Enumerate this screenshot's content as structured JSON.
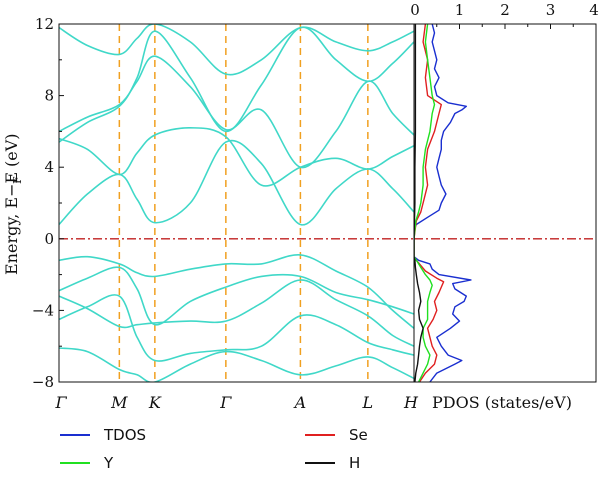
{
  "chart_data": [
    {
      "type": "line",
      "title": "",
      "ylabel": "Energy, E−E",
      "ylabel_sub": "F",
      "ylabel_unit": "(eV)",
      "ylim": [
        -8,
        12
      ],
      "yticks": [
        12,
        8,
        4,
        0,
        -4,
        -8
      ],
      "ytick_labels": [
        "12",
        "8",
        "4",
        "0",
        "−4",
        "−8"
      ],
      "kpoints": [
        {
          "label": "Γ",
          "x": 0
        },
        {
          "label": "M",
          "x": 0.17
        },
        {
          "label": "K",
          "x": 0.27
        },
        {
          "label": "Γ",
          "x": 0.47
        },
        {
          "label": "A",
          "x": 0.68
        },
        {
          "label": "L",
          "x": 0.87
        },
        {
          "label": "H",
          "x": 1.0
        }
      ],
      "fermi_level": 0,
      "band_color": "#40d8c8",
      "highsym_line_color": "#f0a020",
      "fermi_line_color": "#c02020",
      "series": [
        {
          "values": [
            [
              0,
              0.8
            ],
            [
              0.08,
              2.5
            ],
            [
              0.17,
              3.6
            ],
            [
              0.22,
              2.2
            ],
            [
              0.27,
              0.9
            ],
            [
              0.37,
              2.0
            ],
            [
              0.47,
              5.4
            ],
            [
              0.57,
              4.2
            ],
            [
              0.68,
              0.8
            ],
            [
              0.78,
              2.8
            ],
            [
              0.87,
              3.9
            ],
            [
              0.94,
              2.8
            ],
            [
              1.0,
              1.5
            ]
          ]
        },
        {
          "values": [
            [
              0,
              5.6
            ],
            [
              0.08,
              5.0
            ],
            [
              0.17,
              3.6
            ],
            [
              0.22,
              4.8
            ],
            [
              0.27,
              5.8
            ],
            [
              0.37,
              6.2
            ],
            [
              0.47,
              5.7
            ],
            [
              0.57,
              3.0
            ],
            [
              0.68,
              4.0
            ],
            [
              0.78,
              4.5
            ],
            [
              0.87,
              3.9
            ],
            [
              0.94,
              4.6
            ],
            [
              1.0,
              5.2
            ]
          ]
        },
        {
          "values": [
            [
              0,
              6.0
            ],
            [
              0.08,
              6.8
            ],
            [
              0.17,
              7.5
            ],
            [
              0.22,
              8.8
            ],
            [
              0.27,
              10.2
            ],
            [
              0.37,
              8.5
            ],
            [
              0.47,
              6.1
            ],
            [
              0.57,
              7.2
            ],
            [
              0.68,
              4.0
            ],
            [
              0.78,
              6.0
            ],
            [
              0.87,
              8.8
            ],
            [
              0.94,
              7.0
            ],
            [
              1.0,
              5.8
            ]
          ]
        },
        {
          "values": [
            [
              0,
              5.4
            ],
            [
              0.08,
              6.5
            ],
            [
              0.17,
              7.4
            ],
            [
              0.22,
              9.0
            ],
            [
              0.27,
              11.6
            ],
            [
              0.37,
              9.0
            ],
            [
              0.47,
              6.0
            ],
            [
              0.57,
              8.6
            ],
            [
              0.68,
              11.8
            ],
            [
              0.78,
              10.0
            ],
            [
              0.87,
              8.8
            ],
            [
              0.94,
              9.8
            ],
            [
              1.0,
              11.0
            ]
          ]
        },
        {
          "values": [
            [
              0,
              11.8
            ],
            [
              0.08,
              10.8
            ],
            [
              0.17,
              10.3
            ],
            [
              0.22,
              11.2
            ],
            [
              0.27,
              12.0
            ],
            [
              0.37,
              11.0
            ],
            [
              0.47,
              9.2
            ],
            [
              0.57,
              10.0
            ],
            [
              0.68,
              11.8
            ],
            [
              0.78,
              11.0
            ],
            [
              0.87,
              10.5
            ],
            [
              0.94,
              11.0
            ],
            [
              1.0,
              11.6
            ]
          ]
        },
        {
          "values": [
            [
              0,
              -1.2
            ],
            [
              0.08,
              -1.0
            ],
            [
              0.17,
              -1.4
            ],
            [
              0.22,
              -1.9
            ],
            [
              0.27,
              -2.1
            ],
            [
              0.37,
              -1.7
            ],
            [
              0.47,
              -1.4
            ],
            [
              0.57,
              -1.4
            ],
            [
              0.68,
              -0.9
            ],
            [
              0.78,
              -1.8
            ],
            [
              0.87,
              -2.7
            ],
            [
              0.94,
              -4.0
            ],
            [
              1.0,
              -5.0
            ]
          ]
        },
        {
          "values": [
            [
              0,
              -2.9
            ],
            [
              0.08,
              -2.2
            ],
            [
              0.17,
              -1.6
            ],
            [
              0.22,
              -2.8
            ],
            [
              0.27,
              -4.8
            ],
            [
              0.37,
              -3.5
            ],
            [
              0.47,
              -2.7
            ],
            [
              0.57,
              -2.1
            ],
            [
              0.68,
              -2.1
            ],
            [
              0.78,
              -3.0
            ],
            [
              0.87,
              -3.4
            ],
            [
              0.94,
              -3.8
            ],
            [
              1.0,
              -4.2
            ]
          ]
        },
        {
          "values": [
            [
              0,
              -3.2
            ],
            [
              0.08,
              -3.9
            ],
            [
              0.17,
              -4.9
            ],
            [
              0.22,
              -4.8
            ],
            [
              0.27,
              -4.7
            ],
            [
              0.37,
              -4.6
            ],
            [
              0.47,
              -4.6
            ],
            [
              0.57,
              -3.6
            ],
            [
              0.68,
              -2.3
            ],
            [
              0.78,
              -3.4
            ],
            [
              0.87,
              -4.3
            ],
            [
              0.94,
              -5.4
            ],
            [
              1.0,
              -6.0
            ]
          ]
        },
        {
          "values": [
            [
              0,
              -4.5
            ],
            [
              0.08,
              -3.8
            ],
            [
              0.17,
              -3.2
            ],
            [
              0.22,
              -5.5
            ],
            [
              0.27,
              -6.8
            ],
            [
              0.37,
              -6.4
            ],
            [
              0.47,
              -6.2
            ],
            [
              0.57,
              -6.0
            ],
            [
              0.68,
              -4.3
            ],
            [
              0.78,
              -4.8
            ],
            [
              0.87,
              -5.8
            ],
            [
              0.94,
              -6.2
            ],
            [
              1.0,
              -6.5
            ]
          ]
        },
        {
          "values": [
            [
              0,
              -6.1
            ],
            [
              0.08,
              -6.3
            ],
            [
              0.17,
              -7.3
            ],
            [
              0.22,
              -7.6
            ],
            [
              0.27,
              -8.0
            ],
            [
              0.37,
              -7.0
            ],
            [
              0.47,
              -6.3
            ],
            [
              0.57,
              -6.8
            ],
            [
              0.68,
              -7.6
            ],
            [
              0.78,
              -7.1
            ],
            [
              0.87,
              -6.6
            ],
            [
              0.94,
              -7.2
            ],
            [
              1.0,
              -7.8
            ]
          ]
        }
      ]
    },
    {
      "type": "line",
      "xlabel": "PDOS (states/eV)",
      "xlim": [
        0,
        4
      ],
      "xticks": [
        0,
        1,
        2,
        3,
        4
      ],
      "xtick_labels": [
        "0",
        "1",
        "2",
        "3",
        "4"
      ],
      "ylim": [
        -8,
        12
      ],
      "legend_placement": "below",
      "series": [
        {
          "name": "TDOS",
          "color": "#1a2fd0",
          "energy": [
            -8,
            -7.5,
            -7,
            -6.8,
            -6.5,
            -6,
            -5.5,
            -5,
            -4.6,
            -4.2,
            -3.8,
            -3.5,
            -3.2,
            -2.8,
            -2.5,
            -2.3,
            -2,
            -1.7,
            -1.4,
            -1.2,
            -1.0,
            -0.5,
            0,
            0.5,
            0.8,
            1.2,
            1.6,
            2,
            2.5,
            3,
            3.5,
            4,
            4.5,
            5,
            5.5,
            6,
            6.5,
            7,
            7.2,
            7.4,
            7.6,
            8,
            8.5,
            9,
            9.5,
            10,
            10.5,
            11,
            11.5,
            12
          ],
          "values": [
            0.35,
            0.5,
            0.9,
            1.05,
            0.75,
            0.6,
            0.5,
            0.8,
            1.0,
            0.85,
            0.9,
            1.1,
            1.15,
            0.9,
            0.85,
            1.25,
            0.55,
            0.4,
            0.35,
            0.1,
            0.0,
            0.0,
            0.0,
            0.0,
            0.05,
            0.3,
            0.55,
            0.6,
            0.7,
            0.6,
            0.55,
            0.5,
            0.55,
            0.6,
            0.6,
            0.65,
            0.8,
            0.9,
            1.05,
            1.15,
            0.75,
            0.5,
            0.45,
            0.55,
            0.45,
            0.5,
            0.45,
            0.4,
            0.45,
            0.4
          ]
        },
        {
          "name": "Se",
          "color": "#e02020",
          "energy": [
            -8,
            -7.5,
            -7,
            -6.5,
            -6,
            -5.5,
            -5,
            -4.5,
            -4,
            -3.5,
            -3,
            -2.7,
            -2.4,
            -2.2,
            -1.8,
            -1.4,
            -1.2,
            -1.0,
            0,
            1,
            1.5,
            2,
            3,
            4,
            5,
            6,
            7,
            7.5,
            8,
            9,
            10,
            11,
            12
          ],
          "values": [
            0.12,
            0.25,
            0.45,
            0.5,
            0.4,
            0.35,
            0.3,
            0.42,
            0.5,
            0.45,
            0.55,
            0.6,
            0.65,
            0.5,
            0.25,
            0.12,
            0.05,
            0.0,
            0.0,
            0.05,
            0.15,
            0.2,
            0.3,
            0.25,
            0.3,
            0.45,
            0.55,
            0.6,
            0.3,
            0.25,
            0.3,
            0.2,
            0.25
          ]
        },
        {
          "name": "Y",
          "color": "#20e020",
          "energy": [
            -8,
            -7.5,
            -7,
            -6.5,
            -6,
            -5.5,
            -5,
            -4.5,
            -4,
            -3.5,
            -3,
            -2.6,
            -2.3,
            -2.0,
            -1.6,
            -1.3,
            -1.0,
            0,
            1,
            1.5,
            2,
            3,
            4,
            5,
            6,
            7,
            7.5,
            8,
            9,
            10,
            11,
            12
          ],
          "values": [
            0.1,
            0.2,
            0.3,
            0.35,
            0.25,
            0.2,
            0.2,
            0.3,
            0.3,
            0.3,
            0.35,
            0.4,
            0.35,
            0.25,
            0.15,
            0.08,
            0.0,
            0.0,
            0.04,
            0.1,
            0.15,
            0.2,
            0.2,
            0.25,
            0.35,
            0.4,
            0.45,
            0.4,
            0.35,
            0.3,
            0.25,
            0.3
          ]
        },
        {
          "name": "H",
          "color": "#111111",
          "energy": [
            -8,
            -7.5,
            -7,
            -6.5,
            -6,
            -5.5,
            -5,
            -4.5,
            -4,
            -3.5,
            -3,
            -2.5,
            -2.0,
            -1.6,
            -1.2,
            -1.0,
            0,
            2,
            4,
            6,
            8,
            10,
            12
          ],
          "values": [
            0.02,
            0.04,
            0.08,
            0.1,
            0.12,
            0.15,
            0.2,
            0.12,
            0.1,
            0.15,
            0.12,
            0.08,
            0.05,
            0.03,
            0.02,
            0.0,
            0.0,
            0.02,
            0.02,
            0.03,
            0.03,
            0.03,
            0.03
          ]
        }
      ]
    }
  ]
}
